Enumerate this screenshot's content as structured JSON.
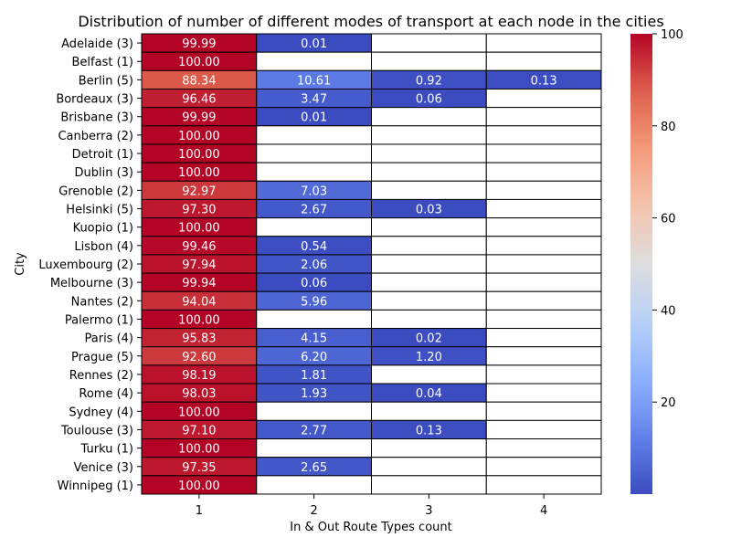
{
  "chart_data": {
    "type": "heatmap",
    "title": "Distribution of number of different modes of transport at each node in the cities",
    "xlabel": "In & Out Route Types count",
    "ylabel": "City",
    "columns": [
      "1",
      "2",
      "3",
      "4"
    ],
    "rows": [
      "Adelaide (3)",
      "Belfast (1)",
      "Berlin (5)",
      "Bordeaux (3)",
      "Brisbane (3)",
      "Canberra (2)",
      "Detroit (1)",
      "Dublin (3)",
      "Grenoble (2)",
      "Helsinki (5)",
      "Kuopio (1)",
      "Lisbon (4)",
      "Luxembourg (2)",
      "Melbourne (3)",
      "Nantes (2)",
      "Palermo (1)",
      "Paris (4)",
      "Prague (5)",
      "Rennes (2)",
      "Rome (4)",
      "Sydney (4)",
      "Toulouse (3)",
      "Turku (1)",
      "Venice (3)",
      "Winnipeg (1)"
    ],
    "values": [
      [
        99.99,
        0.01,
        null,
        null
      ],
      [
        100.0,
        null,
        null,
        null
      ],
      [
        88.34,
        10.61,
        0.92,
        0.13
      ],
      [
        96.46,
        3.47,
        0.06,
        null
      ],
      [
        99.99,
        0.01,
        null,
        null
      ],
      [
        100.0,
        null,
        null,
        null
      ],
      [
        100.0,
        null,
        null,
        null
      ],
      [
        100.0,
        null,
        null,
        null
      ],
      [
        92.97,
        7.03,
        null,
        null
      ],
      [
        97.3,
        2.67,
        0.03,
        null
      ],
      [
        100.0,
        null,
        null,
        null
      ],
      [
        99.46,
        0.54,
        null,
        null
      ],
      [
        97.94,
        2.06,
        null,
        null
      ],
      [
        99.94,
        0.06,
        null,
        null
      ],
      [
        94.04,
        5.96,
        null,
        null
      ],
      [
        100.0,
        null,
        null,
        null
      ],
      [
        95.83,
        4.15,
        0.02,
        null
      ],
      [
        92.6,
        6.2,
        1.2,
        null
      ],
      [
        98.19,
        1.81,
        null,
        null
      ],
      [
        98.03,
        1.93,
        0.04,
        null
      ],
      [
        100.0,
        null,
        null,
        null
      ],
      [
        97.1,
        2.77,
        0.13,
        null
      ],
      [
        100.0,
        null,
        null,
        null
      ],
      [
        97.35,
        2.65,
        null,
        null
      ],
      [
        100.0,
        null,
        null,
        null
      ]
    ],
    "colorbar": {
      "colormap": "coolwarm",
      "range": [
        0,
        100
      ],
      "ticks": [
        20,
        40,
        60,
        80,
        100
      ]
    },
    "grid": true
  }
}
